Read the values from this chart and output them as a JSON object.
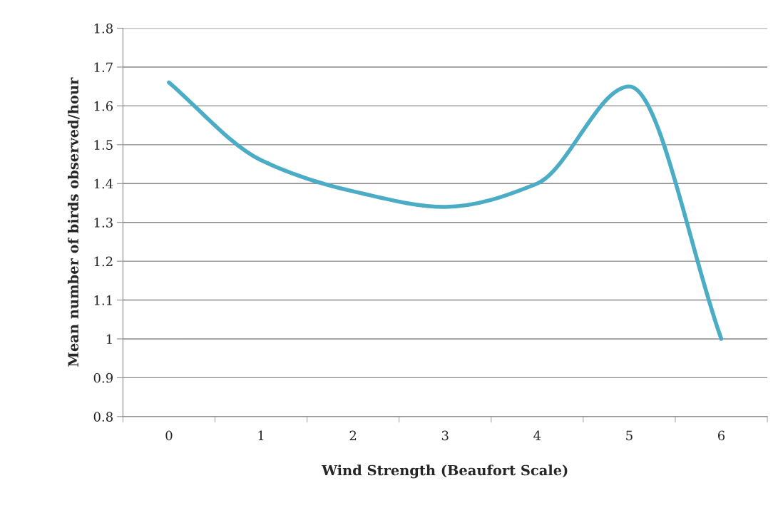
{
  "chart_data": {
    "type": "line",
    "xlabel": "Wind Strength (Beaufort Scale)",
    "ylabel": "Mean number of birds observed/hour",
    "categories": [
      "0",
      "1",
      "2",
      "3",
      "4",
      "5",
      "6"
    ],
    "series": [
      {
        "color": "#4bacc6",
        "values": [
          1.66,
          1.46,
          1.38,
          1.34,
          1.4,
          1.65,
          1.0
        ]
      }
    ],
    "ylim": [
      0.8,
      1.8
    ],
    "yticks": [
      0.8,
      0.9,
      1,
      1.1,
      1.2,
      1.3,
      1.4,
      1.5,
      1.6,
      1.7,
      1.8
    ],
    "grid": "y",
    "legend": false,
    "marker": "none",
    "line_style": "solid"
  }
}
